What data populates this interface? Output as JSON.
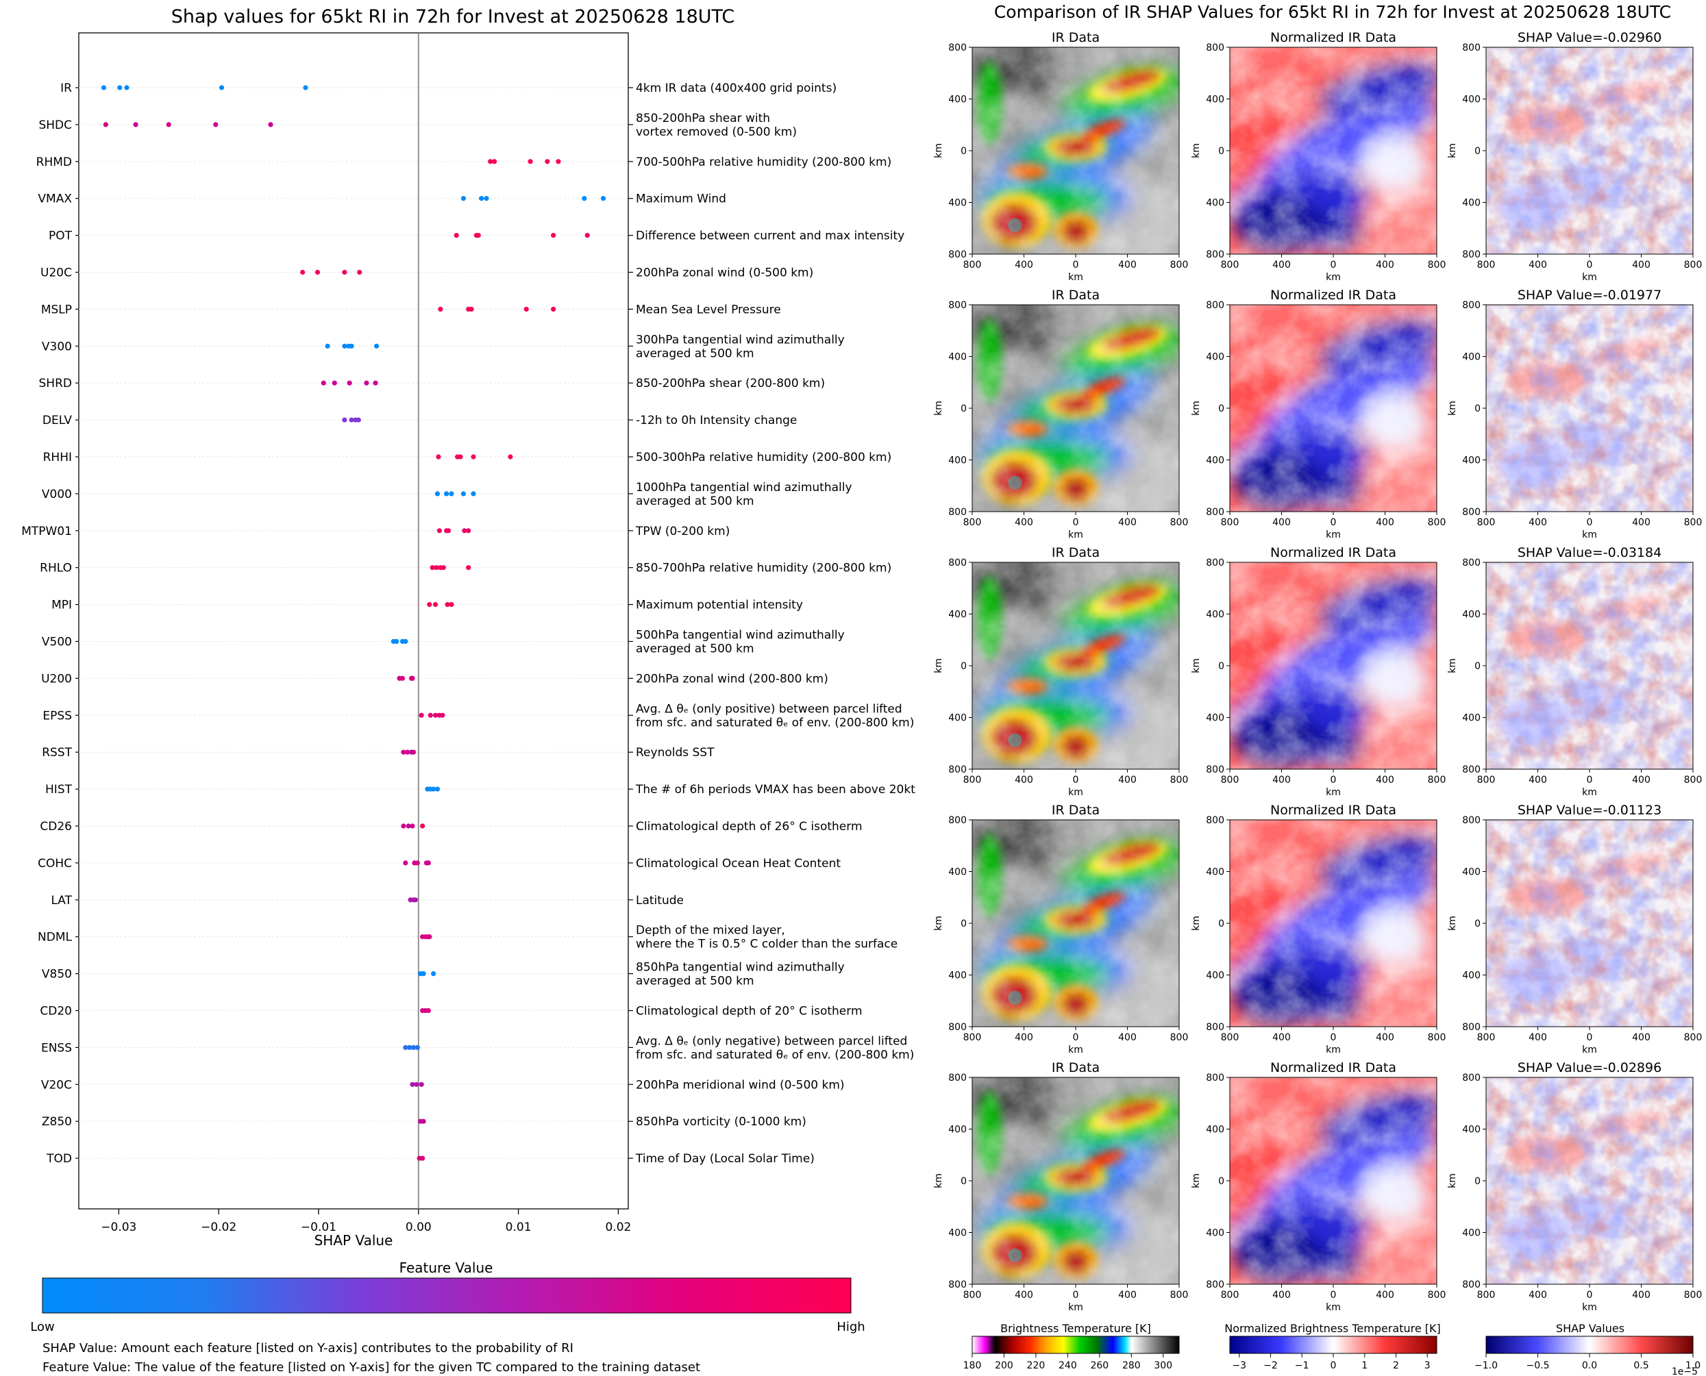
{
  "chart_data": [
    {
      "type": "scatter",
      "title": "Shap values for 65kt RI in 72h for Invest at 20250628 18UTC",
      "xlabel": "SHAP Value",
      "xlim": [
        -0.034,
        0.021
      ],
      "xticks": [
        -0.03,
        -0.02,
        -0.01,
        0.0,
        0.01,
        0.02
      ],
      "xtick_labels": [
        "−0.03",
        "−0.02",
        "−0.01",
        "0.00",
        "0.01",
        "0.02"
      ],
      "legend_title": "Feature Value",
      "legend_low": "Low",
      "legend_high": "High",
      "colormap": [
        "#008bfb",
        "#7d3cd8",
        "#c90095",
        "#ff0052"
      ],
      "notes": [
        "SHAP Value: Amount each feature [listed on Y-axis] contributes to the probability of RI",
        "Feature Value: The value of the feature [listed on Y-axis] for the given TC compared to the training dataset"
      ],
      "features": [
        {
          "name": "IR",
          "desc": [
            "4km IR data (400x400 grid points)"
          ],
          "values": [
            -0.0315,
            -0.0292,
            -0.0299,
            -0.0197,
            -0.0113
          ],
          "colors": [
            0.0,
            0.0,
            0.0,
            0.0,
            0.0
          ]
        },
        {
          "name": "SHDC",
          "desc": [
            "850-200hPa shear with",
            "vortex removed (0-500 km)"
          ],
          "values": [
            -0.0313,
            -0.0283,
            -0.025,
            -0.0203,
            -0.0148
          ],
          "colors": [
            0.75,
            0.65,
            0.75,
            0.7,
            0.7
          ]
        },
        {
          "name": "RHMD",
          "desc": [
            "700-500hPa relative humidity (200-800 km)"
          ],
          "values": [
            0.0072,
            0.0076,
            0.0112,
            0.0129,
            0.014
          ],
          "colors": [
            0.95,
            0.95,
            0.95,
            0.95,
            0.95
          ]
        },
        {
          "name": "VMAX",
          "desc": [
            "Maximum Wind"
          ],
          "values": [
            0.0045,
            0.0063,
            0.0068,
            0.0166,
            0.0185
          ],
          "colors": [
            0.0,
            0.0,
            0.0,
            0.0,
            0.0
          ]
        },
        {
          "name": "POT",
          "desc": [
            "Difference between current and max intensity"
          ],
          "values": [
            0.0038,
            0.0058,
            0.006,
            0.0135,
            0.0169
          ],
          "colors": [
            0.95,
            0.95,
            0.95,
            0.95,
            0.9
          ]
        },
        {
          "name": "U20C",
          "desc": [
            "200hPa zonal wind (0-500 km)"
          ],
          "values": [
            -0.0116,
            -0.0101,
            -0.0074,
            -0.0059
          ],
          "colors": [
            0.9,
            0.9,
            0.9,
            0.9
          ]
        },
        {
          "name": "MSLP",
          "desc": [
            "Mean Sea Level Pressure"
          ],
          "values": [
            0.0022,
            0.005,
            0.0053,
            0.0108,
            0.0135
          ],
          "colors": [
            0.95,
            0.95,
            0.95,
            0.95,
            0.95
          ]
        },
        {
          "name": "V300",
          "desc": [
            "300hPa tangential wind azimuthally",
            "averaged at 500 km"
          ],
          "values": [
            -0.0091,
            -0.0074,
            -0.007,
            -0.0067,
            -0.0042
          ],
          "colors": [
            0.0,
            0.0,
            0.0,
            0.0,
            0.0
          ]
        },
        {
          "name": "SHRD",
          "desc": [
            "850-200hPa shear (200-800 km)"
          ],
          "values": [
            -0.0095,
            -0.0084,
            -0.0069,
            -0.0052,
            -0.0043
          ],
          "colors": [
            0.7,
            0.65,
            0.7,
            0.65,
            0.7
          ]
        },
        {
          "name": "DELV",
          "desc": [
            "-12h to 0h Intensity change"
          ],
          "values": [
            -0.0074,
            -0.0067,
            -0.0063,
            -0.006
          ],
          "colors": [
            0.35,
            0.35,
            0.35,
            0.35
          ]
        },
        {
          "name": "RHHI",
          "desc": [
            "500-300hPa relative humidity (200-800 km)"
          ],
          "values": [
            0.002,
            0.0039,
            0.0042,
            0.0055,
            0.0092
          ],
          "colors": [
            0.95,
            0.95,
            0.95,
            0.95,
            0.95
          ]
        },
        {
          "name": "V000",
          "desc": [
            "1000hPa tangential wind azimuthally",
            "averaged at 500 km"
          ],
          "values": [
            0.0019,
            0.0028,
            0.0033,
            0.0045,
            0.0055
          ],
          "colors": [
            0.0,
            0.0,
            0.0,
            0.0,
            0.0
          ]
        },
        {
          "name": "MTPW01",
          "desc": [
            "TPW (0-200 km)"
          ],
          "values": [
            0.0021,
            0.0028,
            0.003,
            0.0046,
            0.005
          ],
          "colors": [
            0.9,
            0.9,
            0.9,
            0.9,
            0.9
          ]
        },
        {
          "name": "RHLO",
          "desc": [
            "850-700hPa relative humidity (200-800 km)"
          ],
          "values": [
            0.0014,
            0.0018,
            0.0022,
            0.0025,
            0.005
          ],
          "colors": [
            0.95,
            0.95,
            0.95,
            0.95,
            0.95
          ]
        },
        {
          "name": "MPI",
          "desc": [
            "Maximum potential intensity"
          ],
          "values": [
            0.0011,
            0.0017,
            0.0029,
            0.0033
          ],
          "colors": [
            0.95,
            0.95,
            0.95,
            0.95
          ]
        },
        {
          "name": "V500",
          "desc": [
            "500hPa tangential wind azimuthally",
            "averaged at 500 km"
          ],
          "values": [
            -0.0025,
            -0.0022,
            -0.0016,
            -0.0013
          ],
          "colors": [
            0.0,
            0.0,
            0.0,
            0.0
          ]
        },
        {
          "name": "U200",
          "desc": [
            "200hPa zonal wind (200-800 km)"
          ],
          "values": [
            -0.0019,
            -0.0016,
            -0.0007,
            -0.0006
          ],
          "colors": [
            0.75,
            0.75,
            0.75,
            0.75
          ]
        },
        {
          "name": "EPSS",
          "desc": [
            "Avg. Δ θₑ (only positive) between parcel lifted",
            "from sfc. and saturated θₑ of env. (200-800 km)"
          ],
          "values": [
            0.0003,
            0.0012,
            0.0017,
            0.0021,
            0.0024
          ],
          "colors": [
            0.9,
            0.85,
            0.85,
            0.8,
            0.85
          ]
        },
        {
          "name": "RSST",
          "desc": [
            "Reynolds SST"
          ],
          "values": [
            -0.0015,
            -0.0011,
            -0.0007,
            -0.0005
          ],
          "colors": [
            0.7,
            0.7,
            0.7,
            0.7
          ]
        },
        {
          "name": "HIST",
          "desc": [
            "The # of 6h periods VMAX has been above 20kt"
          ],
          "values": [
            0.0009,
            0.0012,
            0.0015,
            0.0019
          ],
          "colors": [
            0.0,
            0.0,
            0.0,
            0.0
          ]
        },
        {
          "name": "CD26",
          "desc": [
            "Climatological depth of 26° C isotherm"
          ],
          "values": [
            -0.0015,
            -0.001,
            -0.0006,
            0.0004
          ],
          "colors": [
            0.7,
            0.7,
            0.7,
            0.95
          ]
        },
        {
          "name": "COHC",
          "desc": [
            "Climatological Ocean Heat Content"
          ],
          "values": [
            -0.0013,
            -0.0004,
            -0.0001,
            0.0008,
            0.001
          ],
          "colors": [
            0.7,
            0.7,
            0.75,
            0.75,
            0.7
          ]
        },
        {
          "name": "LAT",
          "desc": [
            "Latitude"
          ],
          "values": [
            -0.0008,
            -0.0005,
            -0.0003
          ],
          "colors": [
            0.55,
            0.55,
            0.55
          ]
        },
        {
          "name": "NDML",
          "desc": [
            "Depth of the mixed layer,",
            "where the T is 0.5° C colder than the surface"
          ],
          "values": [
            0.0004,
            0.0007,
            0.0009,
            0.0011
          ],
          "colors": [
            0.75,
            0.75,
            0.75,
            0.75
          ]
        },
        {
          "name": "V850",
          "desc": [
            "850hPa tangential wind azimuthally",
            "averaged at 500 km"
          ],
          "values": [
            0.0002,
            0.0005,
            0.0015
          ],
          "colors": [
            0.0,
            0.0,
            0.0
          ]
        },
        {
          "name": "CD20",
          "desc": [
            "Climatological depth of 20° C isotherm"
          ],
          "values": [
            0.0004,
            0.0007,
            0.001
          ],
          "colors": [
            0.75,
            0.75,
            0.75
          ]
        },
        {
          "name": "ENSS",
          "desc": [
            "Avg. Δ θₑ (only negative) between parcel lifted",
            "from sfc. and saturated θₑ of env. (200-800 km)"
          ],
          "values": [
            -0.0013,
            -0.0009,
            -0.0005,
            -0.0001
          ],
          "colors": [
            0.1,
            0.1,
            0.1,
            0.1
          ]
        },
        {
          "name": "V20C",
          "desc": [
            "200hPa meridional wind (0-500 km)"
          ],
          "values": [
            -0.0006,
            -0.0002,
            0.0003
          ],
          "colors": [
            0.55,
            0.55,
            0.6
          ]
        },
        {
          "name": "Z850",
          "desc": [
            "850hPa vorticity (0-1000 km)"
          ],
          "values": [
            0.0002,
            0.0005
          ],
          "colors": [
            0.65,
            0.65
          ]
        },
        {
          "name": "TOD",
          "desc": [
            "Time of Day (Local Solar Time)"
          ],
          "values": [
            0.0001,
            0.0004
          ],
          "colors": [
            0.8,
            0.8
          ]
        }
      ]
    },
    {
      "type": "heatmap",
      "title": "Comparison of IR SHAP Values for 65kt RI in 72h for Invest at 20250628 18UTC",
      "panel_titles": [
        "IR Data",
        "Normalized IR Data"
      ],
      "shap_titles": [
        "SHAP Value=-0.02960",
        "SHAP Value=-0.01977",
        "SHAP Value=-0.03184",
        "SHAP Value=-0.01123",
        "SHAP Value=-0.02896"
      ],
      "xlabel": "km",
      "ylabel": "km",
      "axis_range": [
        -800,
        800
      ],
      "xtick_labels": [
        "800",
        "400",
        "0",
        "400",
        "800"
      ],
      "ytick_labels": [
        "800",
        "400",
        "0",
        "400",
        "800"
      ],
      "colorbars": [
        {
          "label": "Brightness Temperature [K]",
          "ticks": [
            "180",
            "200",
            "220",
            "240",
            "260",
            "280",
            "300"
          ],
          "range": [
            180,
            310
          ]
        },
        {
          "label": "Normalized Brightness Temperature [K]",
          "ticks": [
            "−3",
            "−2",
            "−1",
            "0",
            "1",
            "2",
            "3"
          ],
          "range": [
            -3.3,
            3.3
          ]
        },
        {
          "label": "SHAP Values",
          "ticks": [
            "−1.0",
            "−0.5",
            "0.0",
            "0.5",
            "1.0"
          ],
          "range": [
            -1,
            1
          ],
          "offset": "1e−5"
        }
      ]
    }
  ]
}
